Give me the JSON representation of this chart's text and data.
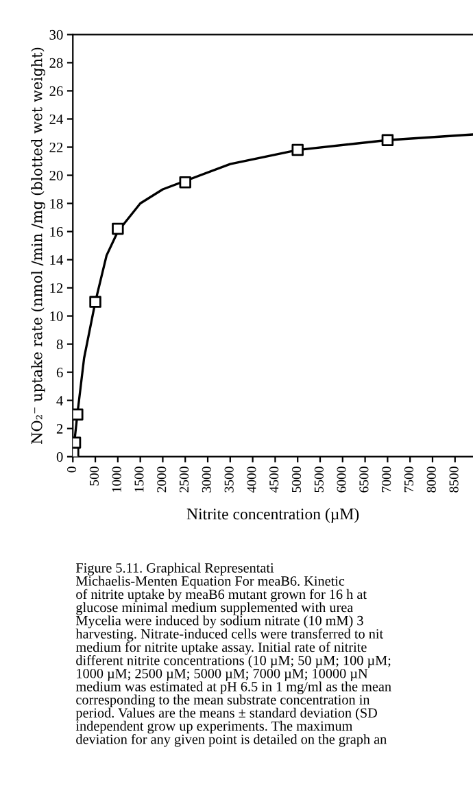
{
  "chart_data": {
    "type": "scatter",
    "xlabel": "Nitrite concentration (µM)",
    "ylabel": "NO₂⁻ uptake rate (nmol /min /mg (blotted wet weight)",
    "series": [
      {
        "color": "#000000",
        "marker": "square",
        "x": [
          10,
          50,
          100,
          500,
          1000,
          2500,
          5000,
          7000
        ],
        "values": [
          0.3,
          1.0,
          3.0,
          11.0,
          16.2,
          19.5,
          21.8,
          22.5
        ]
      },
      {
        "type": "line",
        "color": "#000000",
        "marker": "none",
        "line_style": "solid",
        "x": [
          0,
          50,
          100,
          250,
          500,
          750,
          1000,
          1500,
          2000,
          2500,
          3500,
          5000,
          7000,
          8900
        ],
        "values": [
          0,
          1.5,
          3.0,
          7.0,
          11.0,
          14.3,
          16.0,
          18.0,
          19.0,
          19.6,
          20.8,
          21.8,
          22.5,
          22.9
        ]
      }
    ],
    "xlim": [
      0,
      8900
    ],
    "xticks": [
      0,
      500,
      1000,
      1500,
      2000,
      2500,
      3000,
      3500,
      4000,
      4500,
      5000,
      5500,
      6000,
      6500,
      7000,
      7500,
      8000,
      8500
    ],
    "ylim": [
      0,
      30
    ],
    "yticks": [
      0,
      2,
      4,
      6,
      8,
      10,
      12,
      14,
      16,
      18,
      20,
      22,
      24,
      26,
      28,
      30
    ],
    "grid": false,
    "legend": false,
    "annotations": [
      "Figure 5.11. Graphical Representati\nMichaelis-Menten Equation For meaB6. Kinetic\nof nitrite uptake by meaB6 mutant grown for 16 h at\nglucose minimal medium supplemented with urea\nMycelia were induced by sodium nitrate (10 mM) 3\nharvesting. Nitrate-induced cells were transferred to nit\nmedium for nitrite uptake assay. Initial rate of nitrite\ndifferent nitrite concentrations (10 µM; 50 µM; 100 µM;\n1000 µM; 2500 µM; 5000 µM; 7000 µM; 10000 µN\nmedium was estimated at pH 6.5 in 1 mg/ml as the mean\ncorresponding to the mean substrate concentration in\nperiod. Values are the means ± standard deviation (SD\nindependent grow up experiments. The maximum\ndeviation for any given point is detailed on the graph an"
    ]
  }
}
